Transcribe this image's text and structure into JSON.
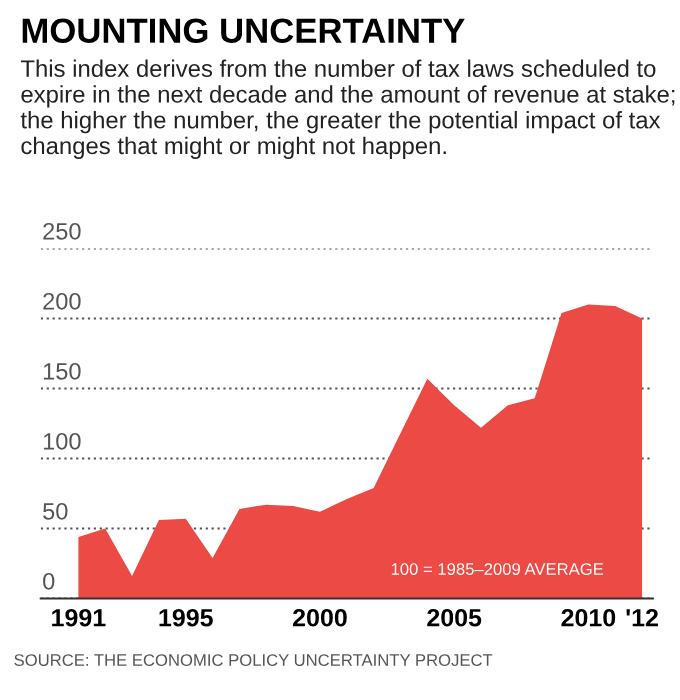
{
  "chart_data": {
    "type": "area",
    "title": "MOUNTING UNCERTAINTY",
    "subtitle": "This index derives from the number of tax laws scheduled to expire in the next decade and the amount of revenue at stake; the higher the number, the greater the potential impact of tax changes that might or might not happen.",
    "x": [
      1991,
      1992,
      1993,
      1994,
      1995,
      1996,
      1997,
      1998,
      1999,
      2000,
      2001,
      2002,
      2003,
      2004,
      2005,
      2006,
      2007,
      2008,
      2009,
      2010,
      2011,
      2012
    ],
    "series": [
      {
        "color": "#ec4a45",
        "values": [
          44,
          50,
          16,
          56,
          57,
          29,
          64,
          67,
          66,
          62,
          71,
          79,
          118,
          157,
          138,
          122,
          138,
          143,
          204,
          210,
          209,
          200
        ]
      }
    ],
    "xlim": [
      1989.6,
      2012.4
    ],
    "ylim": [
      0,
      250
    ],
    "xticks": [
      1991,
      1995,
      2000,
      2005,
      2010,
      {
        "value": 2012,
        "label": "'12"
      }
    ],
    "yticks": [
      0,
      50,
      100,
      150,
      200,
      250
    ],
    "grid": "y",
    "annotations": [
      "100 = 1985–2009 AVERAGE",
      "SOURCE: THE ECONOMIC POLICY UNCERTAINTY PROJECT"
    ]
  }
}
